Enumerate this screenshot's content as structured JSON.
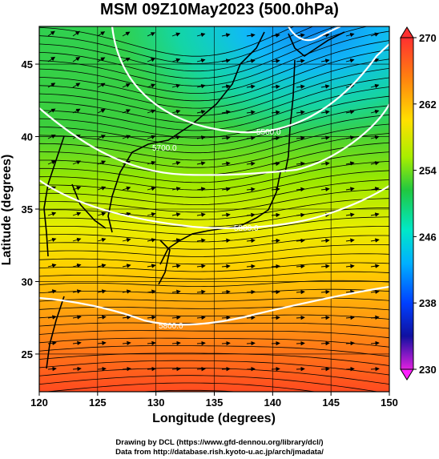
{
  "title": "MSM 09Z10May2023 (500.0hPa)",
  "axes": {
    "xlabel": "Longitude (degrees)",
    "ylabel": "Latitude  (degrees)",
    "x_ticks": [
      "120",
      "125",
      "130",
      "135",
      "140",
      "145",
      "150"
    ],
    "y_ticks": [
      "45",
      "40",
      "35",
      "30",
      "25"
    ]
  },
  "colorbar": {
    "labels": [
      "270",
      "262",
      "254",
      "246",
      "238",
      "230"
    ],
    "range": [
      230,
      270
    ],
    "colors": [
      "#ff2040",
      "#ff7a10",
      "#ffd400",
      "#b8f000",
      "#20c840",
      "#00e8c0",
      "#00b0ff",
      "#0040ff",
      "#1010b0",
      "#c000c0",
      "#ff40ff"
    ]
  },
  "contours": [
    "5500.0",
    "5700.0",
    "5800.0",
    "5800.0"
  ],
  "credits": [
    "Drawing by DCL (https://www.gfd-dennou.org/library/dcl/)",
    "Data from http://database.rish.kyoto-u.ac.jp/arch/jmadata/"
  ],
  "chart_data": {
    "type": "heatmap",
    "title": "MSM 09Z10May2023 (500.0hPa)",
    "xlabel": "Longitude (degrees)",
    "ylabel": "Latitude  (degrees)",
    "xlim": [
      120,
      150
    ],
    "ylim": [
      22.4,
      47.6
    ],
    "colorbar_range": [
      230,
      270
    ],
    "colorbar_ticks": [
      270,
      262,
      254,
      246,
      238,
      230
    ],
    "geopotential_height_contours_m": [
      5500,
      5700,
      5800
    ],
    "field": "temperature (K) shaded, wind streamlines/vectors, geopotential height contours",
    "grid": true
  }
}
